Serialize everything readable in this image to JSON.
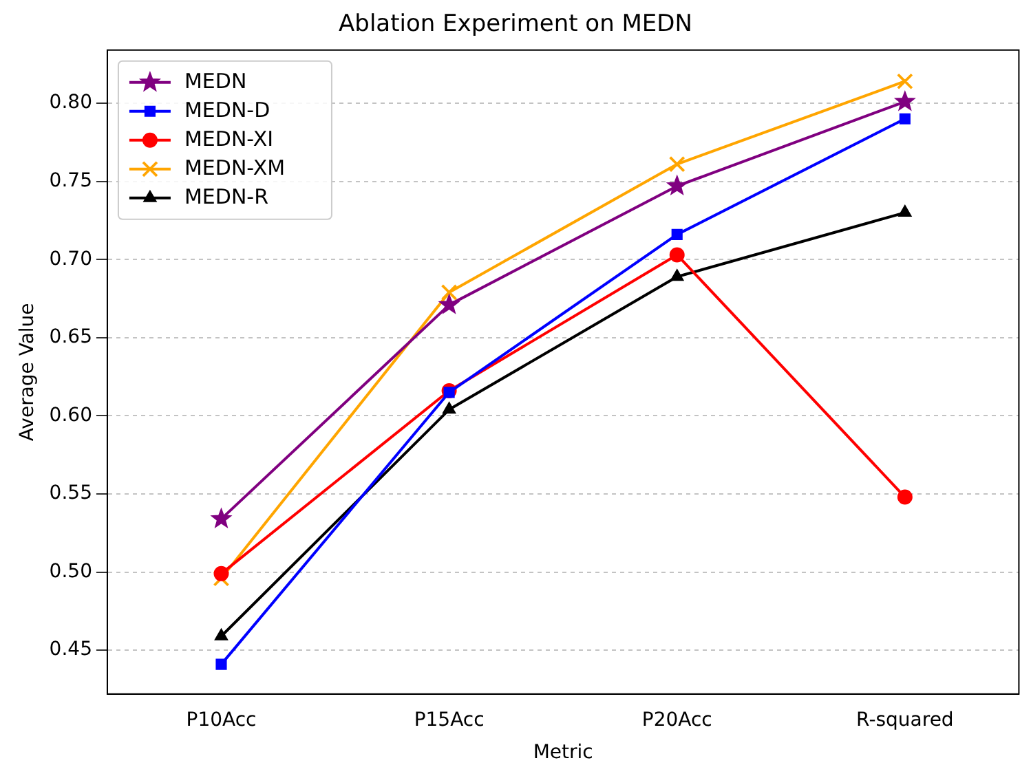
{
  "chart_data": {
    "type": "line",
    "title": "Ablation Experiment on MEDN",
    "xlabel": "Metric",
    "ylabel": "Average Value",
    "categories": [
      "P10Acc",
      "P15Acc",
      "P20Acc",
      "R-squared"
    ],
    "series": [
      {
        "name": "MEDN",
        "color": "#800080",
        "marker": "star",
        "values": [
          0.534,
          0.671,
          0.747,
          0.801
        ]
      },
      {
        "name": "MEDN-D",
        "color": "#0000ff",
        "marker": "square",
        "values": [
          0.441,
          0.615,
          0.716,
          0.79
        ]
      },
      {
        "name": "MEDN-XI",
        "color": "#ff0000",
        "marker": "circle",
        "values": [
          0.499,
          0.616,
          0.703,
          0.548
        ]
      },
      {
        "name": "MEDN-XM",
        "color": "#ffa500",
        "marker": "cross",
        "values": [
          0.496,
          0.679,
          0.761,
          0.814
        ]
      },
      {
        "name": "MEDN-R",
        "color": "#000000",
        "marker": "triangle",
        "values": [
          0.459,
          0.604,
          0.689,
          0.73
        ]
      }
    ],
    "ylim": [
      0.422,
      0.834
    ],
    "yticks": [
      {
        "value": 0.45,
        "label": "0.45"
      },
      {
        "value": 0.5,
        "label": "0.50"
      },
      {
        "value": 0.55,
        "label": "0.55"
      },
      {
        "value": 0.6,
        "label": "0.60"
      },
      {
        "value": 0.65,
        "label": "0.65"
      },
      {
        "value": 0.7,
        "label": "0.70"
      },
      {
        "value": 0.75,
        "label": "0.75"
      },
      {
        "value": 0.8,
        "label": "0.80"
      }
    ],
    "grid": "y",
    "legend": "top left",
    "line_style": "solid"
  }
}
